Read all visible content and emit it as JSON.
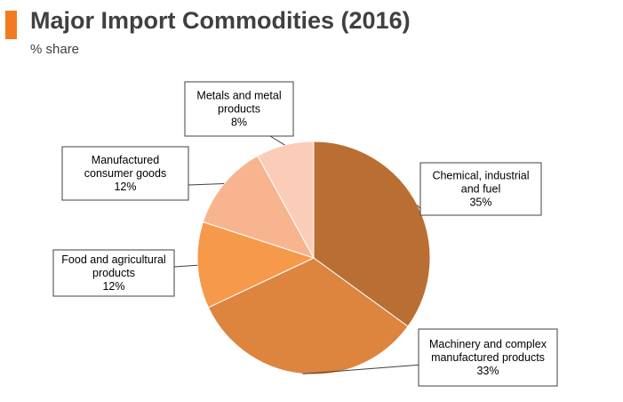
{
  "header": {
    "title": "Major Import Commodities (2016)",
    "subtitle": "% share",
    "accent_color": "#f27b21"
  },
  "chart_data": {
    "type": "pie",
    "title": "Major Import Commodities (2016)",
    "subtitle": "% share",
    "unit": "%",
    "legend": "none",
    "slices": [
      {
        "label_lines": [
          "Chemical, industrial",
          "and fuel"
        ],
        "value": 35,
        "value_label": "35%",
        "color": "#b96f33"
      },
      {
        "label_lines": [
          "Machinery and complex",
          "manufactured products"
        ],
        "value": 33,
        "value_label": "33%",
        "color": "#dd843f"
      },
      {
        "label_lines": [
          "Food and agricultural",
          "products"
        ],
        "value": 12,
        "value_label": "12%",
        "color": "#f7994b"
      },
      {
        "label_lines": [
          "Manufactured",
          "consumer goods"
        ],
        "value": 12,
        "value_label": "12%",
        "color": "#f8b48e"
      },
      {
        "label_lines": [
          "Metals and metal",
          "products"
        ],
        "value": 8,
        "value_label": "8%",
        "color": "#fbcdb8"
      }
    ]
  }
}
